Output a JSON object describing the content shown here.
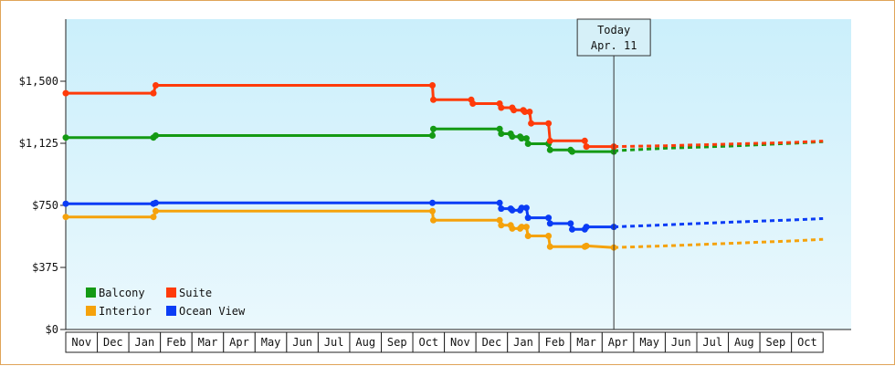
{
  "chart_data": {
    "type": "line",
    "title": "",
    "xlabel": "",
    "ylabel": "",
    "ylim": [
      0,
      1875
    ],
    "y_ticks": [
      0,
      375,
      750,
      1125,
      1500
    ],
    "y_tick_labels": [
      "$0",
      "$375",
      "$750",
      "$1,125",
      "$1,500"
    ],
    "x_months": [
      "Nov",
      "Dec",
      "Jan",
      "Feb",
      "Mar",
      "Apr",
      "May",
      "Jun",
      "Jul",
      "Aug",
      "Sep",
      "Oct",
      "Nov",
      "Dec",
      "Jan",
      "Feb",
      "Mar",
      "Apr",
      "May",
      "Jun",
      "Jul",
      "Aug",
      "Sep",
      "Oct"
    ],
    "today": {
      "line1": "Today",
      "line2": "Apr. 11",
      "month_pos": 17.37
    },
    "grid": false,
    "legend_position": "bottom-left",
    "legend": [
      {
        "name": "Balcony",
        "color": "#149a14"
      },
      {
        "name": "Suite",
        "color": "#ff3b0a"
      },
      {
        "name": "Interior",
        "color": "#f5a20b"
      },
      {
        "name": "Ocean View",
        "color": "#0a3cf5"
      }
    ],
    "series": [
      {
        "name": "Suite",
        "color": "#ff3b0a",
        "points": [
          [
            0,
            1428
          ],
          [
            2.78,
            1428
          ],
          [
            2.85,
            1475
          ],
          [
            11.62,
            1475
          ],
          [
            11.65,
            1388
          ],
          [
            12.85,
            1388
          ],
          [
            12.9,
            1365
          ],
          [
            13.75,
            1365
          ],
          [
            13.8,
            1340
          ],
          [
            14.15,
            1340
          ],
          [
            14.2,
            1325
          ],
          [
            14.5,
            1325
          ],
          [
            14.55,
            1315
          ],
          [
            14.7,
            1315
          ],
          [
            14.75,
            1245
          ],
          [
            15.3,
            1245
          ],
          [
            15.35,
            1140
          ],
          [
            16.45,
            1140
          ],
          [
            16.5,
            1105
          ],
          [
            17.37,
            1105
          ]
        ],
        "forecast": [
          [
            17.37,
            1105
          ],
          [
            19.0,
            1110
          ],
          [
            21.0,
            1120
          ],
          [
            23.0,
            1130
          ],
          [
            24.0,
            1138
          ]
        ]
      },
      {
        "name": "Balcony",
        "color": "#149a14",
        "points": [
          [
            0,
            1160
          ],
          [
            2.78,
            1160
          ],
          [
            2.85,
            1172
          ],
          [
            11.62,
            1172
          ],
          [
            11.65,
            1212
          ],
          [
            13.75,
            1212
          ],
          [
            13.8,
            1183
          ],
          [
            14.1,
            1183
          ],
          [
            14.15,
            1165
          ],
          [
            14.4,
            1165
          ],
          [
            14.45,
            1155
          ],
          [
            14.6,
            1155
          ],
          [
            14.65,
            1122
          ],
          [
            15.3,
            1122
          ],
          [
            15.35,
            1085
          ],
          [
            16.0,
            1085
          ],
          [
            16.05,
            1075
          ],
          [
            17.37,
            1075
          ]
        ],
        "forecast": [
          [
            17.37,
            1080
          ],
          [
            19.0,
            1095
          ],
          [
            21.0,
            1108
          ],
          [
            23.0,
            1125
          ],
          [
            24.0,
            1135
          ]
        ]
      },
      {
        "name": "Ocean View",
        "color": "#0a3cf5",
        "points": [
          [
            0,
            760
          ],
          [
            2.78,
            760
          ],
          [
            2.85,
            765
          ],
          [
            11.62,
            765
          ],
          [
            13.75,
            765
          ],
          [
            13.8,
            730
          ],
          [
            14.1,
            730
          ],
          [
            14.15,
            720
          ],
          [
            14.4,
            720
          ],
          [
            14.45,
            735
          ],
          [
            14.6,
            735
          ],
          [
            14.65,
            675
          ],
          [
            15.3,
            675
          ],
          [
            15.35,
            640
          ],
          [
            16.0,
            640
          ],
          [
            16.05,
            605
          ],
          [
            16.45,
            605
          ],
          [
            16.5,
            620
          ],
          [
            17.37,
            620
          ]
        ],
        "forecast": [
          [
            17.37,
            620
          ],
          [
            19.0,
            632
          ],
          [
            21.0,
            648
          ],
          [
            23.0,
            662
          ],
          [
            24.0,
            670
          ]
        ]
      },
      {
        "name": "Interior",
        "color": "#f5a20b",
        "points": [
          [
            0,
            680
          ],
          [
            2.78,
            680
          ],
          [
            2.85,
            715
          ],
          [
            11.62,
            715
          ],
          [
            11.65,
            660
          ],
          [
            13.75,
            660
          ],
          [
            13.8,
            630
          ],
          [
            14.1,
            630
          ],
          [
            14.15,
            610
          ],
          [
            14.4,
            610
          ],
          [
            14.45,
            620
          ],
          [
            14.6,
            620
          ],
          [
            14.65,
            565
          ],
          [
            15.3,
            565
          ],
          [
            15.35,
            500
          ],
          [
            16.45,
            500
          ],
          [
            16.5,
            505
          ],
          [
            17.37,
            495
          ]
        ],
        "forecast": [
          [
            17.37,
            495
          ],
          [
            19.0,
            505
          ],
          [
            21.0,
            520
          ],
          [
            23.0,
            535
          ],
          [
            24.0,
            545
          ]
        ]
      }
    ]
  }
}
